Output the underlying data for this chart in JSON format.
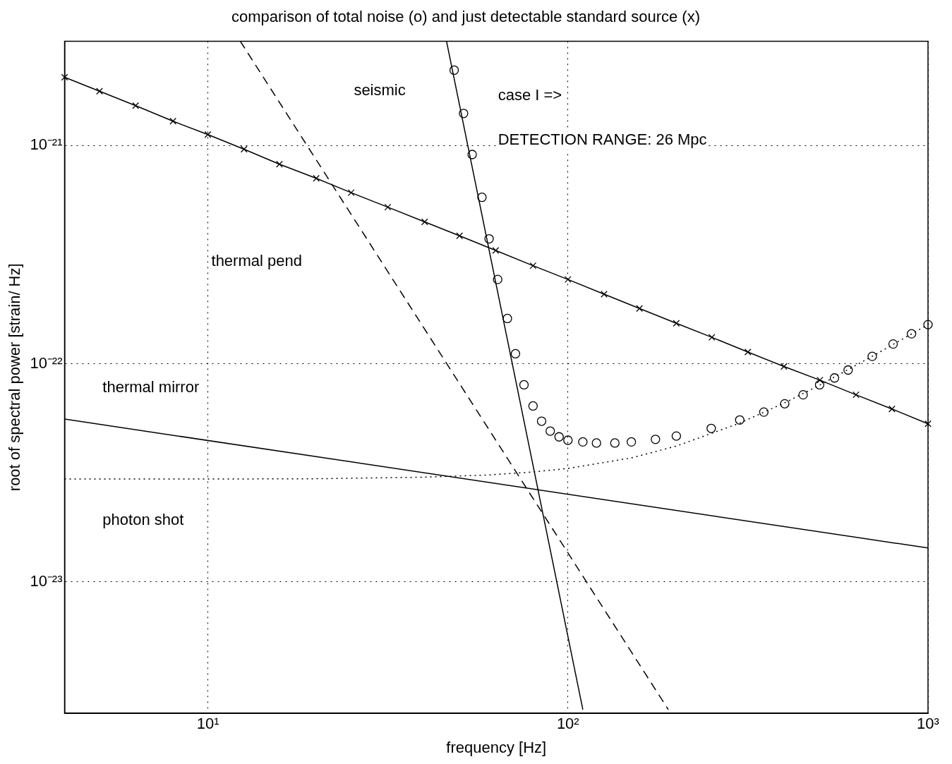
{
  "chart_data": {
    "type": "line",
    "title": "comparison of total noise (o) and just detectable standard source (x)",
    "xlabel": "frequency [Hz]",
    "ylabel": "root of spectral power [strain/ Hz]",
    "log": "xy",
    "grid": true,
    "legend": false,
    "xlim": [
      4,
      1000
    ],
    "xticks": [
      {
        "value": 10,
        "label": "10¹"
      },
      {
        "value": 100,
        "label": "10²"
      },
      {
        "value": 1000,
        "label": "10³"
      }
    ],
    "ylim": [
      2.5e-24,
      3e-21
    ],
    "yticks": [
      {
        "value": 1e-23,
        "label": "10⁻²³"
      },
      {
        "value": 1e-22,
        "label": "10⁻²²"
      },
      {
        "value": 1e-21,
        "label": "10⁻²¹"
      }
    ],
    "series": [
      {
        "color": "#000000",
        "marker": "cross",
        "line_style": "solid",
        "x": [
          4,
          5,
          6.3,
          8,
          10,
          12.6,
          15.8,
          20,
          25,
          31.6,
          40,
          50,
          63,
          80,
          100,
          126,
          158,
          200,
          251,
          316,
          398,
          501,
          631,
          794,
          1000
        ],
        "values": [
          2.05e-21,
          1.77e-21,
          1.52e-21,
          1.29e-21,
          1.12e-21,
          9.6e-22,
          8.2e-22,
          7.06e-22,
          6.07e-22,
          5.21e-22,
          4.46e-22,
          3.85e-22,
          3.3e-22,
          2.81e-22,
          2.43e-22,
          2.08e-22,
          1.79e-22,
          1.53e-22,
          1.32e-22,
          1.13e-22,
          9.7e-23,
          8.4e-23,
          7.2e-23,
          6.2e-23,
          5.3e-23
        ]
      },
      {
        "type": "scatter",
        "color": "#000000",
        "marker": "circle",
        "x": [
          48.3,
          51.3,
          54.2,
          57.7,
          60.4,
          63.8,
          67.9,
          71.5,
          75.5,
          80,
          84.5,
          89.3,
          94.5,
          100,
          110,
          120,
          135,
          150,
          175,
          200,
          250,
          300,
          350,
          400,
          450,
          500,
          550,
          600,
          700,
          800,
          900,
          1000
        ],
        "values": [
          2.21e-21,
          1.4e-21,
          9.08e-22,
          5.78e-22,
          3.73e-22,
          2.43e-22,
          1.61e-22,
          1.11e-22,
          8e-23,
          6.4e-23,
          5.45e-23,
          4.91e-23,
          4.62e-23,
          4.46e-23,
          4.38e-23,
          4.33e-23,
          4.33e-23,
          4.38e-23,
          4.5e-23,
          4.66e-23,
          5.05e-23,
          5.52e-23,
          6e-23,
          6.55e-23,
          7.2e-23,
          8e-23,
          8.6e-23,
          9.35e-23,
          1.08e-22,
          1.23e-22,
          1.37e-22,
          1.51e-22
        ]
      },
      {
        "color": "#000000",
        "marker": "none",
        "line_style": "solid",
        "x": [
          46,
          110
        ],
        "values": [
          3e-21,
          2.6e-24
        ]
      },
      {
        "color": "#000000",
        "marker": "none",
        "line_style": "dashed",
        "x": [
          12.3,
          190
        ],
        "values": [
          3e-21,
          2.6e-24
        ]
      },
      {
        "color": "#000000",
        "marker": "none",
        "line_style": "solid",
        "x": [
          4,
          1000
        ],
        "values": [
          5.57e-23,
          1.43e-23
        ]
      },
      {
        "color": "#000000",
        "marker": "none",
        "line_style": "dotted",
        "x": [
          4,
          10,
          20,
          40,
          60,
          80,
          100,
          150,
          200,
          300,
          400,
          500,
          700,
          1000
        ],
        "values": [
          2.96e-23,
          2.96e-23,
          2.97e-23,
          3.02e-23,
          3.09e-23,
          3.19e-23,
          3.31e-23,
          3.7e-23,
          4.19e-23,
          5.34e-23,
          6.62e-23,
          7.97e-23,
          1.08e-22,
          1.51e-22
        ]
      }
    ],
    "annotations": [
      "seismic",
      "case I =>",
      "DETECTION RANGE: 26 Mpc",
      "thermal pend",
      "thermal mirror",
      "photon shot"
    ]
  }
}
